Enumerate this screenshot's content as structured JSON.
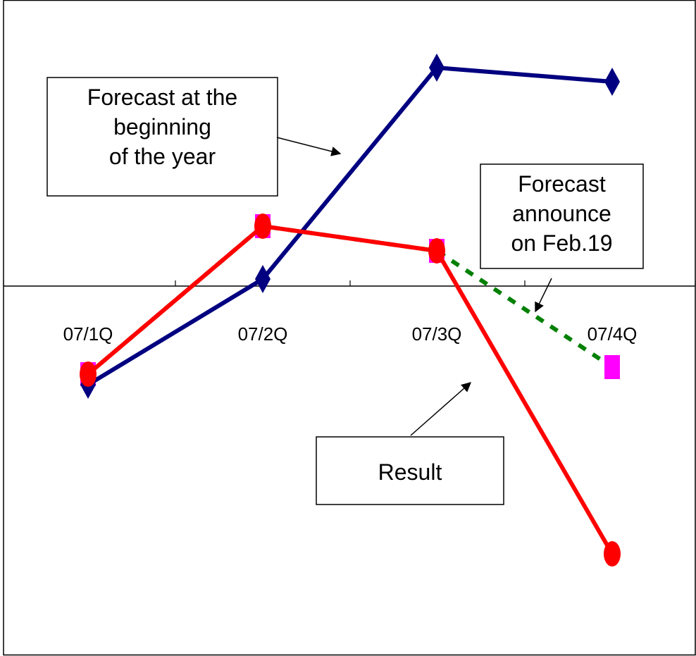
{
  "chart_data": {
    "type": "line",
    "title": "",
    "xlabel": "",
    "ylabel": "",
    "categories": [
      "07/1Q",
      "07/2Q",
      "07/3Q",
      "07/4Q"
    ],
    "ylim": [
      -5,
      4.2
    ],
    "grid": false,
    "series": [
      {
        "key": "forecast_beginning",
        "values": [
          -1.4,
          0.1,
          3.1,
          2.9
        ],
        "color": "#000080",
        "marker": "diamond",
        "line_style": "solid"
      },
      {
        "key": "forecast_feb19",
        "values": [
          -1.25,
          0.85,
          0.5,
          -1.15
        ],
        "color": "#008000",
        "marker": "square",
        "marker_color": "#ff00ff",
        "line_style": "dashed"
      },
      {
        "key": "result",
        "values": [
          -1.25,
          0.85,
          0.5,
          -3.8
        ],
        "color": "#ff0000",
        "marker": "circle",
        "line_style": "solid"
      }
    ],
    "annotations": [
      {
        "key": "forecast_beginning",
        "lines": [
          "Forecast at the",
          "beginning",
          "of the year"
        ]
      },
      {
        "key": "forecast_feb19",
        "lines": [
          "Forecast",
          "announce",
          "on Feb.19"
        ]
      },
      {
        "key": "result",
        "lines": [
          "Result"
        ]
      }
    ]
  }
}
